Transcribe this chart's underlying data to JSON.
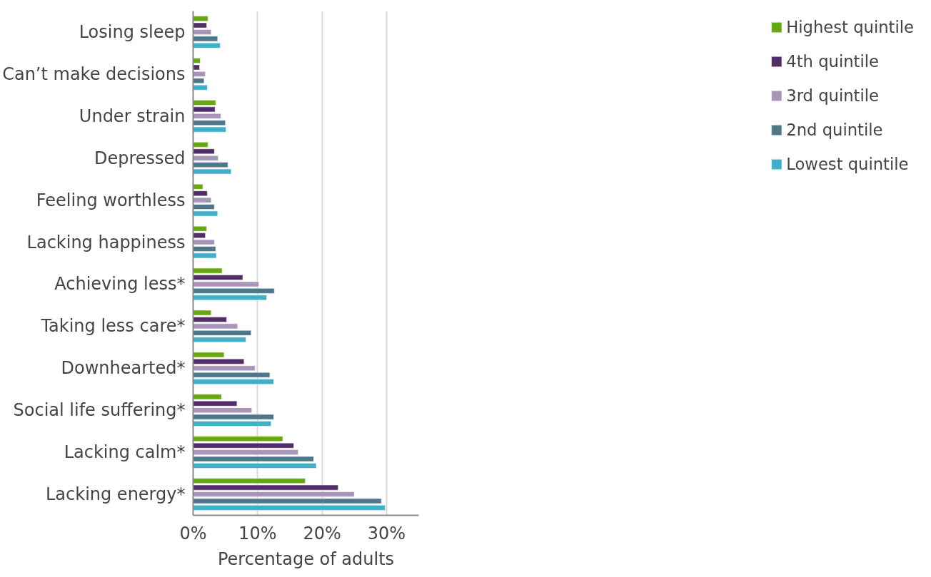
{
  "chart_data": {
    "type": "bar",
    "orientation": "horizontal",
    "xlabel": "Percentage of adults",
    "categories": [
      "Losing sleep",
      "Can’t make decisions",
      "Under strain",
      "Depressed",
      "Feeling worthless",
      "Lacking happiness",
      "Achieving less*",
      "Taking less care*",
      "Downhearted*",
      "Social life suffering*",
      "Lacking calm*",
      "Lacking energy*"
    ],
    "series": [
      {
        "name": "Highest quintile",
        "color": "#66a80f",
        "values": [
          2.3,
          1.1,
          3.5,
          2.3,
          1.5,
          2.1,
          4.5,
          2.8,
          4.8,
          4.4,
          13.9,
          17.4
        ]
      },
      {
        "name": "4th quintile",
        "color": "#532c6a",
        "values": [
          2.1,
          1.0,
          3.4,
          3.3,
          2.2,
          1.9,
          7.7,
          5.2,
          7.9,
          6.8,
          15.6,
          22.5
        ]
      },
      {
        "name": "3rd quintile",
        "color": "#a896b8",
        "values": [
          2.8,
          1.9,
          4.3,
          3.9,
          2.8,
          3.3,
          10.2,
          6.9,
          9.6,
          9.1,
          16.3,
          25.0
        ]
      },
      {
        "name": "2nd quintile",
        "color": "#4f778c",
        "values": [
          3.8,
          1.7,
          5.0,
          5.4,
          3.3,
          3.5,
          12.6,
          9.0,
          11.9,
          12.5,
          18.7,
          29.2
        ]
      },
      {
        "name": "Lowest quintile",
        "color": "#40b0c8",
        "values": [
          4.2,
          2.2,
          5.1,
          5.9,
          3.8,
          3.6,
          11.4,
          8.2,
          12.5,
          12.1,
          19.1,
          29.8
        ]
      }
    ],
    "xlim": [
      0,
      35
    ],
    "xticks": [
      {
        "value": 0,
        "label": "0%"
      },
      {
        "value": 10,
        "label": "10%"
      },
      {
        "value": 20,
        "label": "20%"
      },
      {
        "value": 30,
        "label": "30%"
      }
    ],
    "grid": "x",
    "legend": "top right"
  }
}
